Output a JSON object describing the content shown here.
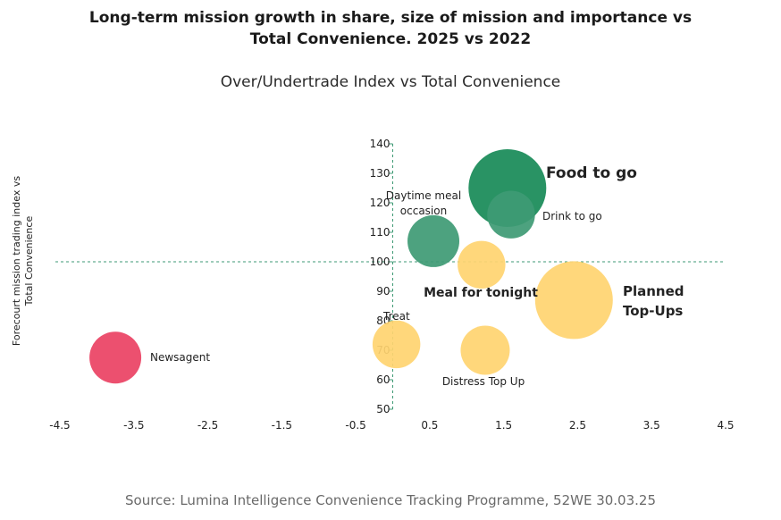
{
  "chart_data": {
    "type": "scatter",
    "title_lines": [
      "Long-term mission growth in share, size of mission and importance vs",
      "Total Convenience. 2025 vs 2022"
    ],
    "subtitle": "Over/Undertrade Index vs Total Convenience",
    "ylabel_lines": [
      "Forecourt mission trading index vs",
      "Total Convenience"
    ],
    "xlabel": "",
    "xlim": [
      -4.5,
      4.5
    ],
    "ylim": [
      50,
      140
    ],
    "x_ticks": [
      "-4.5",
      "-3.5",
      "-2.5",
      "-1.5",
      "-0.5",
      "0.5",
      "1.5",
      "2.5",
      "3.5",
      "4.5"
    ],
    "y_ticks": [
      "50",
      "60",
      "70",
      "80",
      "90",
      "100",
      "110",
      "120",
      "130",
      "140"
    ],
    "reference_lines": {
      "x": 0,
      "y": 100
    },
    "grid": false,
    "points": [
      {
        "label": "Newsagent",
        "x": -3.75,
        "y": 67.5,
        "size": 1.0,
        "color": "#ea4163"
      },
      {
        "label": "Treat",
        "x": 0.05,
        "y": 72,
        "size": 0.85,
        "color": "#ffd470"
      },
      {
        "label": "Distress Top Up",
        "x": 1.25,
        "y": 70,
        "size": 0.9,
        "color": "#ffd470"
      },
      {
        "label": "Meal for tonight",
        "x": 1.2,
        "y": 99,
        "size": 0.85,
        "color": "#ffd470"
      },
      {
        "label": "Daytime meal occasion",
        "x": 0.55,
        "y": 107,
        "size": 1.0,
        "color": "#3e9a74"
      },
      {
        "label": "Drink to go",
        "x": 1.6,
        "y": 116,
        "size": 0.85,
        "color": "#3e9a74"
      },
      {
        "label": "Planned Top-Ups",
        "x": 2.45,
        "y": 87,
        "size": 2.25,
        "color": "#ffd470"
      },
      {
        "label": "Food to go",
        "x": 1.55,
        "y": 125,
        "size": 2.25,
        "color": "#178a57"
      }
    ]
  },
  "labels": {
    "newsagent": "Newsagent",
    "treat": "Treat",
    "distress": "Distress Top Up",
    "meal": "Meal for tonight",
    "daytime_1": "Daytime meal",
    "daytime_2": "occasion",
    "drink": "Drink to go",
    "planned_1": "Planned",
    "planned_2": "Top-Ups",
    "food": "Food to go"
  },
  "source": "Source: Lumina Intelligence Convenience Tracking Programme, 52WE 30.03.25"
}
